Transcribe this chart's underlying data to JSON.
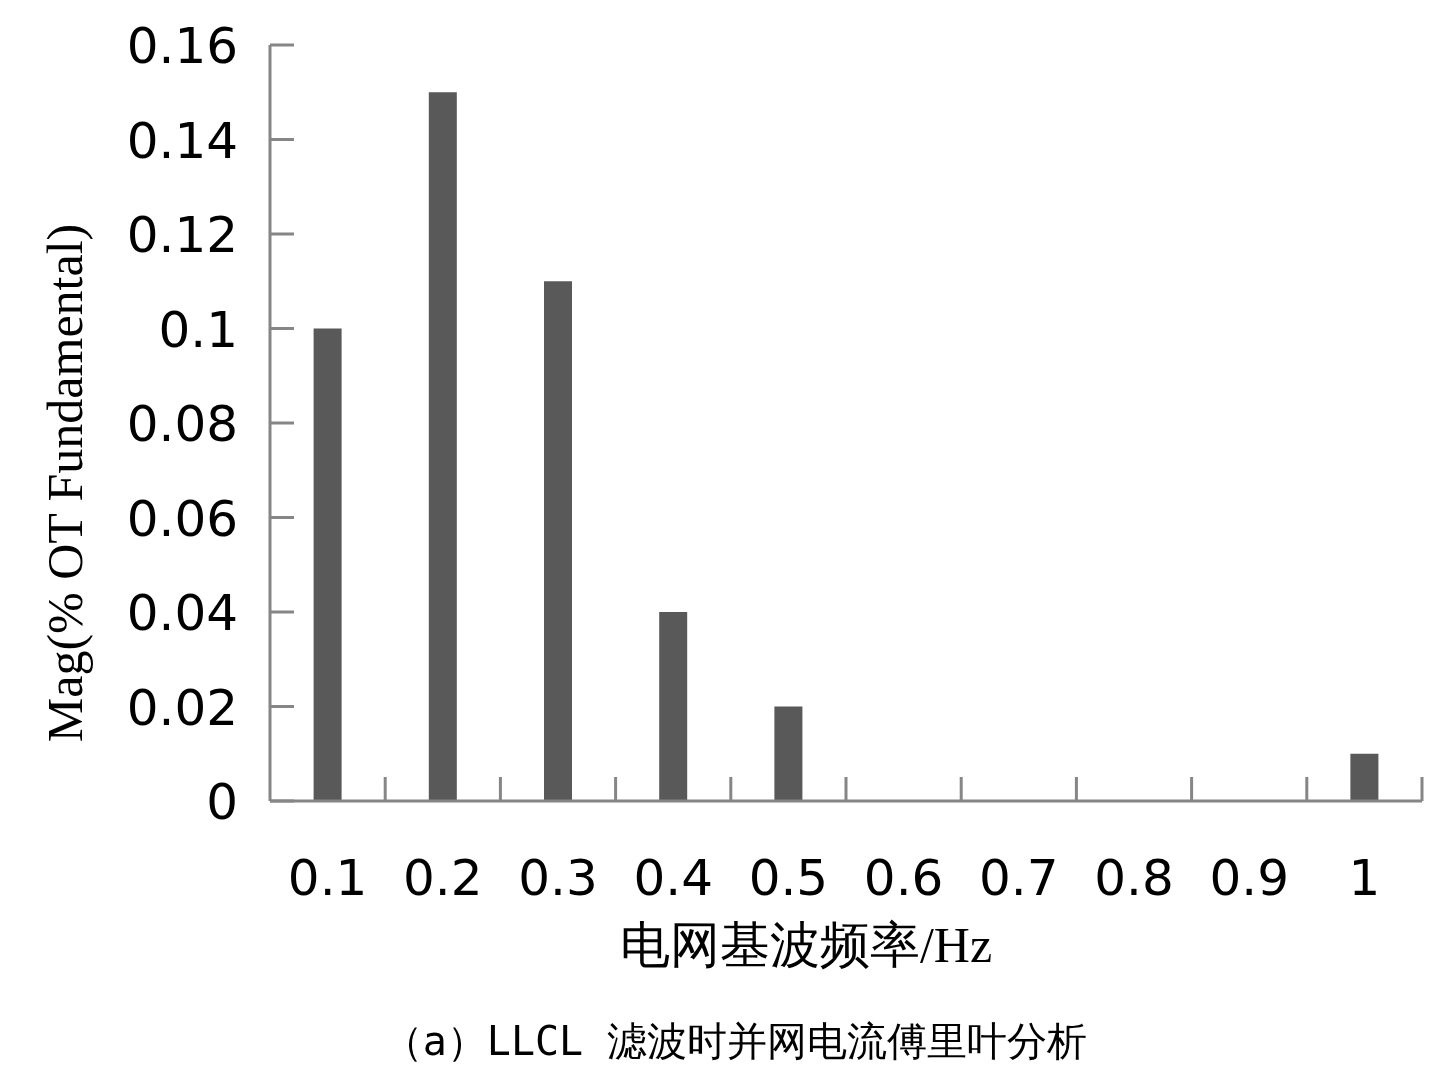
{
  "chart_data": {
    "type": "bar",
    "title": "（a）LLCL 滤波时并网电流傅里叶分析",
    "xlabel": "电网基波频率/Hz",
    "ylabel": "Mag(% OT Fundamental)",
    "categories": [
      "0.1",
      "0.2",
      "0.3",
      "0.4",
      "0.5",
      "0.6",
      "0.7",
      "0.8",
      "0.9",
      "1"
    ],
    "values": [
      0.1,
      0.15,
      0.11,
      0.04,
      0.02,
      0,
      0,
      0,
      0,
      0.01
    ],
    "color": "#595959",
    "ylim": [
      0,
      0.16
    ],
    "yticks": [
      0,
      0.02,
      0.04,
      0.06,
      0.08,
      0.1,
      0.12,
      0.14,
      0.16
    ],
    "grid": false
  }
}
